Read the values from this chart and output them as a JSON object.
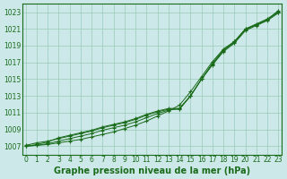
{
  "x": [
    0,
    1,
    2,
    3,
    4,
    5,
    6,
    7,
    8,
    9,
    10,
    11,
    12,
    13,
    14,
    15,
    16,
    17,
    18,
    19,
    20,
    21,
    22,
    23
  ],
  "line1": [
    1007.0,
    1007.1,
    1007.2,
    1007.4,
    1007.6,
    1007.8,
    1008.1,
    1008.4,
    1008.7,
    1009.1,
    1009.5,
    1010.0,
    1010.6,
    1011.2,
    1011.9,
    1013.5,
    1015.3,
    1017.1,
    1018.6,
    1019.5,
    1021.0,
    1021.5,
    1022.1,
    1023.2
  ],
  "line2": [
    1007.0,
    1007.1,
    1007.3,
    1007.6,
    1007.9,
    1008.2,
    1008.5,
    1008.9,
    1009.2,
    1009.5,
    1009.9,
    1010.4,
    1010.9,
    1011.3,
    1011.5,
    1013.0,
    1015.0,
    1016.9,
    1018.5,
    1019.5,
    1021.0,
    1021.6,
    1022.2,
    1023.1
  ],
  "line3": [
    1007.0,
    1007.2,
    1007.5,
    1008.0,
    1008.3,
    1008.6,
    1008.9,
    1009.3,
    1009.6,
    1009.9,
    1010.3,
    1010.8,
    1011.2,
    1011.5,
    1011.5,
    1013.0,
    1015.0,
    1016.8,
    1018.4,
    1019.4,
    1020.9,
    1021.5,
    1022.1,
    1023.0
  ],
  "line4": [
    1007.1,
    1007.4,
    1007.6,
    1007.9,
    1008.2,
    1008.5,
    1008.8,
    1009.2,
    1009.5,
    1009.8,
    1010.2,
    1010.7,
    1011.1,
    1011.4,
    1011.4,
    1013.0,
    1015.0,
    1016.7,
    1018.3,
    1019.3,
    1020.8,
    1021.4,
    1022.0,
    1022.9
  ],
  "bg_color": "#cce8e8",
  "grid_color": "#99ccbb",
  "line_color": "#1a6b1a",
  "xlabel": "Graphe pression niveau de la mer (hPa)",
  "ylim_min": 1006.0,
  "ylim_max": 1024.0,
  "yticks": [
    1007,
    1009,
    1011,
    1013,
    1015,
    1017,
    1019,
    1021,
    1023
  ],
  "xticks": [
    0,
    1,
    2,
    3,
    4,
    5,
    6,
    7,
    8,
    9,
    10,
    11,
    12,
    13,
    14,
    15,
    16,
    17,
    18,
    19,
    20,
    21,
    22,
    23
  ],
  "tick_fontsize": 5.5,
  "xlabel_fontsize": 7.0,
  "border_color": "#1a6b1a"
}
